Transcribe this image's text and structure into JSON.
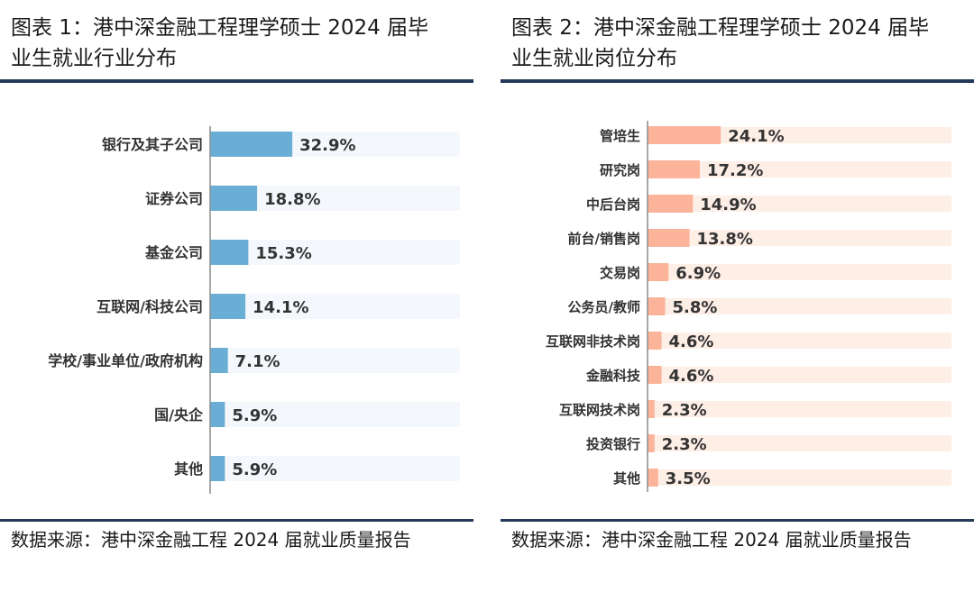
{
  "charts": [
    {
      "title_line1": "图表 1：港中深金融工程理学硕士 2024 届毕",
      "title_line2": "业生就业行业分布",
      "source": "数据来源：港中深金融工程 2024 届就业质量报告"
    },
    {
      "title_line1": "图表 2：港中深金融工程理学硕士 2024 届毕",
      "title_line2": "业生就业岗位分布",
      "source": "数据来源：港中深金融工程 2024 届就业质量报告"
    }
  ],
  "colors": {
    "bar1": "#6aaed6",
    "track1": "#f4f8fc",
    "bar2": "#fbb39a",
    "track2": "#fdeee6",
    "rule": "#243a5a",
    "axis": "#8c8c8c"
  },
  "chart_data": [
    {
      "type": "bar",
      "orientation": "horizontal",
      "categories": [
        "银行及其子公司",
        "证券公司",
        "基金公司",
        "互联网/科技公司",
        "学校/事业单位/政府机构",
        "国/央企",
        "其他"
      ],
      "values": [
        32.9,
        18.8,
        15.3,
        14.1,
        7.1,
        5.9,
        5.9
      ],
      "value_labels": [
        "32.9%",
        "18.8%",
        "15.3%",
        "14.1%",
        "7.1%",
        "5.9%",
        "5.9%"
      ],
      "xlim": [
        0,
        100
      ],
      "grid": false
    },
    {
      "type": "bar",
      "orientation": "horizontal",
      "categories": [
        "管培生",
        "研究岗",
        "中后台岗",
        "前台/销售岗",
        "交易岗",
        "公务员/教师",
        "互联网非技术岗",
        "金融科技",
        "互联网技术岗",
        "投资银行",
        "其他"
      ],
      "values": [
        24.1,
        17.2,
        14.9,
        13.8,
        6.9,
        5.8,
        4.6,
        4.6,
        2.3,
        2.3,
        3.5
      ],
      "value_labels": [
        "24.1%",
        "17.2%",
        "14.9%",
        "13.8%",
        "6.9%",
        "5.8%",
        "4.6%",
        "4.6%",
        "2.3%",
        "2.3%",
        "3.5%"
      ],
      "xlim": [
        0,
        100
      ],
      "grid": false
    }
  ]
}
